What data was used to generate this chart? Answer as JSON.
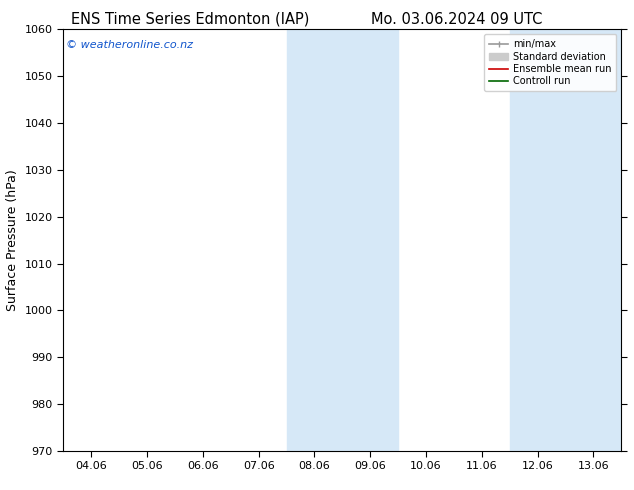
{
  "title_left": "ENS Time Series Edmonton (IAP)",
  "title_right": "Mo. 03.06.2024 09 UTC",
  "ylabel": "Surface Pressure (hPa)",
  "ylim": [
    970,
    1060
  ],
  "yticks": [
    970,
    980,
    990,
    1000,
    1010,
    1020,
    1030,
    1040,
    1050,
    1060
  ],
  "xtick_labels": [
    "04.06",
    "05.06",
    "06.06",
    "07.06",
    "08.06",
    "09.06",
    "10.06",
    "11.06",
    "12.06",
    "13.06"
  ],
  "xtick_positions": [
    0,
    1,
    2,
    3,
    4,
    5,
    6,
    7,
    8,
    9
  ],
  "xlim": [
    -0.5,
    9.5
  ],
  "shaded_bands": [
    {
      "xmin": 3.5,
      "xmax": 4.5
    },
    {
      "xmin": 4.5,
      "xmax": 5.5
    },
    {
      "xmin": 7.5,
      "xmax": 8.5
    },
    {
      "xmin": 8.5,
      "xmax": 9.5
    }
  ],
  "shade_color": "#d6e8f7",
  "watermark": "© weatheronline.co.nz",
  "watermark_color": "#1155cc",
  "background_color": "#ffffff",
  "legend_items": [
    {
      "label": "min/max",
      "color": "#999999",
      "lw": 1.2
    },
    {
      "label": "Standard deviation",
      "color": "#cccccc",
      "lw": 5
    },
    {
      "label": "Ensemble mean run",
      "color": "#cc0000",
      "lw": 1.2
    },
    {
      "label": "Controll run",
      "color": "#006600",
      "lw": 1.2
    }
  ],
  "title_fontsize": 10.5,
  "axis_label_fontsize": 9,
  "tick_fontsize": 8,
  "watermark_fontsize": 8
}
